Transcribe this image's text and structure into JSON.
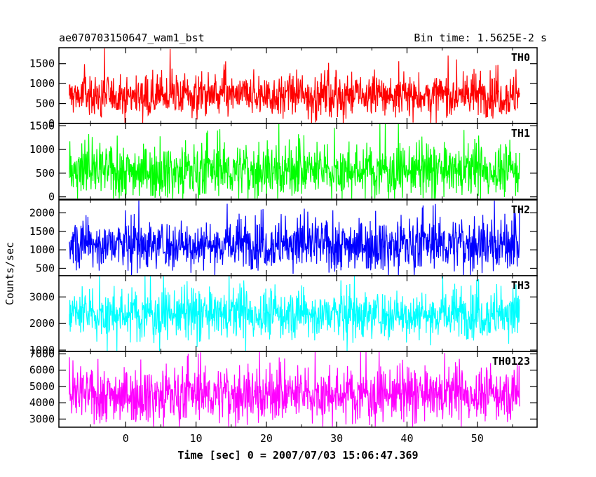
{
  "header": {
    "title": "ae070703150647_wam1_bst",
    "bin_time": "Bin time: 1.5625E-2 s"
  },
  "axes": {
    "ylabel": "Counts/sec",
    "xlabel": "Time [sec] 0 = 2007/07/03 15:06:47.369"
  },
  "chart_data": [
    {
      "type": "line",
      "name": "TH0",
      "color": "#ff0000",
      "x_range": [
        -8,
        56
      ],
      "ylim": [
        0,
        1900
      ],
      "yticks": [
        0,
        500,
        1000,
        1500
      ],
      "baseline_mean": 700,
      "typical_low": 250,
      "typical_high": 1300
    },
    {
      "type": "line",
      "name": "TH1",
      "color": "#00ff00",
      "x_range": [
        -8,
        56
      ],
      "ylim": [
        -50,
        1550
      ],
      "yticks": [
        0,
        500,
        1000,
        1500
      ],
      "baseline_mean": 550,
      "typical_low": 100,
      "typical_high": 1150
    },
    {
      "type": "line",
      "name": "TH2",
      "color": "#0000ff",
      "x_range": [
        -8,
        56
      ],
      "ylim": [
        300,
        2350
      ],
      "yticks": [
        500,
        1000,
        1500,
        2000
      ],
      "baseline_mean": 1150,
      "typical_low": 600,
      "typical_high": 1900
    },
    {
      "type": "line",
      "name": "TH3",
      "color": "#00ffff",
      "x_range": [
        -8,
        56
      ],
      "ylim": [
        950,
        3800
      ],
      "yticks": [
        1000,
        2000,
        3000
      ],
      "baseline_mean": 2350,
      "typical_low": 1500,
      "typical_high": 3300
    },
    {
      "type": "line",
      "name": "TH0123",
      "color": "#ff00ff",
      "x_range": [
        -8,
        56
      ],
      "ylim": [
        2500,
        7150
      ],
      "yticks": [
        3000,
        4000,
        5000,
        6000,
        7000
      ],
      "baseline_mean": 4500,
      "typical_low": 3100,
      "typical_high": 6200
    }
  ],
  "xaxis": {
    "xlim": [
      -9.5,
      58.5
    ],
    "ticks": [
      0,
      10,
      20,
      30,
      40,
      50
    ]
  }
}
